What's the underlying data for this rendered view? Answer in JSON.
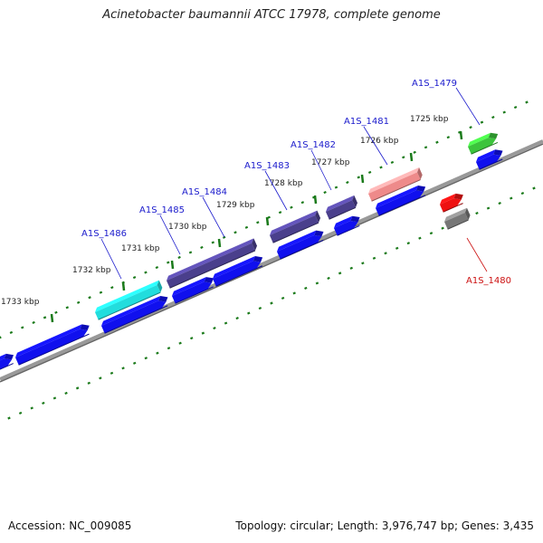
{
  "title": "Acinetobacter baumannii ATCC 17978, complete genome",
  "footer": {
    "accession": "Accession: NC_009085",
    "topology": "Topology: circular",
    "length": "Length: 3,976,747 bp",
    "genes": "Genes: 3,435"
  },
  "scale": {
    "ticks": [
      {
        "label": "1725 kbp",
        "kbp": 1725
      },
      {
        "label": "1726 kbp",
        "kbp": 1726
      },
      {
        "label": "1727 kbp",
        "kbp": 1727
      },
      {
        "label": "1728 kbp",
        "kbp": 1728
      },
      {
        "label": "1729 kbp",
        "kbp": 1729
      },
      {
        "label": "1730 kbp",
        "kbp": 1730
      },
      {
        "label": "1731 kbp",
        "kbp": 1731
      },
      {
        "label": "1732 kbp",
        "kbp": 1732
      },
      {
        "label": "1733 kbp",
        "kbp": 1733
      }
    ]
  },
  "genes": [
    {
      "label": "A1S_1479",
      "strand": "forward",
      "color": "#3cc43c"
    },
    {
      "label": "A1S_1480",
      "strand": "reverse",
      "color": "#ee1111"
    },
    {
      "label": "A1S_1481",
      "strand": "forward",
      "color": "#ee8a8a"
    },
    {
      "label": "A1S_1482",
      "strand": "forward",
      "color": "#4a3f8c"
    },
    {
      "label": "A1S_1483",
      "strand": "forward",
      "color": "#4a3f8c"
    },
    {
      "label": "A1S_1484",
      "strand": "forward",
      "color": "#4a3f8c"
    },
    {
      "label": "A1S_1485",
      "strand": "forward",
      "color": "#4a3f8c"
    },
    {
      "label": "A1S_1486",
      "strand": "forward",
      "color": "#22dddd"
    }
  ],
  "colors": {
    "forward_label": "#1a1acc",
    "reverse_label": "#cc1111",
    "cds_blue": "#1010ee",
    "backbone": "#888888",
    "dots": "#1a7a1a",
    "grey_feature": "#777777"
  }
}
